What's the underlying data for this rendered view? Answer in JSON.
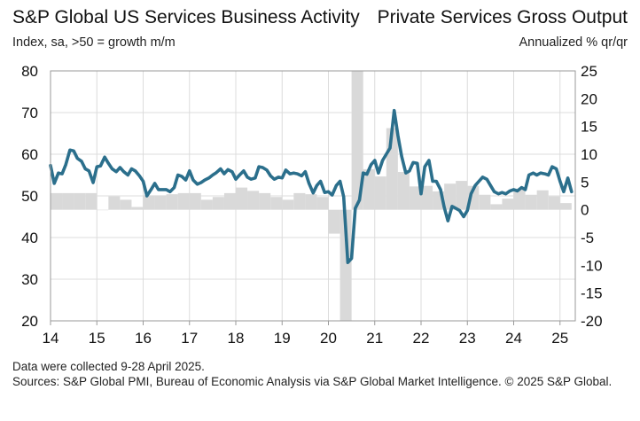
{
  "header": {
    "left_title": "S&P Global US Services Business Activity",
    "right_title": "Private Services Gross Output",
    "left_subtitle": "Index, sa, >50 = growth m/m",
    "right_subtitle": "Annualized % qr/qr"
  },
  "footer": {
    "line1": "Data were collected 9-28 April 2025.",
    "line2": "Sources: S&P Global PMI, Bureau of Economic Analysis via S&P Global Market Intelligence. © 2025 S&P Global."
  },
  "chart_data": {
    "type": "bar+line",
    "x_tick_labels": [
      "14",
      "15",
      "16",
      "17",
      "18",
      "19",
      "20",
      "21",
      "22",
      "23",
      "24",
      "25"
    ],
    "x_range": [
      2014.0,
      2025.33
    ],
    "left_axis": {
      "ylim": [
        20,
        80
      ],
      "ticks": [
        20,
        30,
        40,
        50,
        60,
        70,
        80
      ]
    },
    "right_axis": {
      "ylim": [
        -20,
        25
      ],
      "ticks": [
        -20,
        -15,
        -10,
        -5,
        0,
        5,
        10,
        15,
        20,
        25
      ]
    },
    "bar_color": "#d9d9d9",
    "line_color": "#2b6f8c",
    "grid": true,
    "series": [
      {
        "axis": "right",
        "kind": "bar",
        "quarters": [
          {
            "x": 2014.0,
            "y": 3.0
          },
          {
            "x": 2014.25,
            "y": 3.0
          },
          {
            "x": 2014.5,
            "y": 3.0
          },
          {
            "x": 2014.75,
            "y": 3.0
          },
          {
            "x": 2015.0,
            "y": 0.0
          },
          {
            "x": 2015.25,
            "y": 2.4
          },
          {
            "x": 2015.5,
            "y": 1.8
          },
          {
            "x": 2015.75,
            "y": 0.5
          },
          {
            "x": 2016.0,
            "y": 2.6
          },
          {
            "x": 2016.25,
            "y": 2.6
          },
          {
            "x": 2016.5,
            "y": 2.8
          },
          {
            "x": 2016.75,
            "y": 3.0
          },
          {
            "x": 2017.0,
            "y": 3.0
          },
          {
            "x": 2017.25,
            "y": 1.8
          },
          {
            "x": 2017.5,
            "y": 2.3
          },
          {
            "x": 2017.75,
            "y": 3.0
          },
          {
            "x": 2018.0,
            "y": 4.0
          },
          {
            "x": 2018.25,
            "y": 3.4
          },
          {
            "x": 2018.5,
            "y": 3.0
          },
          {
            "x": 2018.75,
            "y": 2.3
          },
          {
            "x": 2019.0,
            "y": 1.8
          },
          {
            "x": 2019.25,
            "y": 3.0
          },
          {
            "x": 2019.5,
            "y": 2.8
          },
          {
            "x": 2019.75,
            "y": 2.3
          },
          {
            "x": 2020.0,
            "y": -4.3
          },
          {
            "x": 2020.25,
            "y": -20.0
          },
          {
            "x": 2020.5,
            "y": 25.0
          },
          {
            "x": 2020.75,
            "y": 7.3
          },
          {
            "x": 2021.0,
            "y": 6.0
          },
          {
            "x": 2021.25,
            "y": 14.7
          },
          {
            "x": 2021.5,
            "y": 6.8
          },
          {
            "x": 2021.75,
            "y": 4.2
          },
          {
            "x": 2022.0,
            "y": 4.3
          },
          {
            "x": 2022.25,
            "y": 3.3
          },
          {
            "x": 2022.5,
            "y": 4.7
          },
          {
            "x": 2022.75,
            "y": 5.2
          },
          {
            "x": 2023.0,
            "y": 4.3
          },
          {
            "x": 2023.25,
            "y": 2.7
          },
          {
            "x": 2023.5,
            "y": 1.0
          },
          {
            "x": 2023.75,
            "y": 2.0
          },
          {
            "x": 2024.0,
            "y": 3.8
          },
          {
            "x": 2024.25,
            "y": 2.7
          },
          {
            "x": 2024.5,
            "y": 3.5
          },
          {
            "x": 2024.75,
            "y": 2.4
          },
          {
            "x": 2025.0,
            "y": 1.2
          }
        ]
      },
      {
        "axis": "left",
        "kind": "line",
        "points": [
          {
            "x": 2014.0,
            "y": 57.3
          },
          {
            "x": 2014.08,
            "y": 53.0
          },
          {
            "x": 2014.17,
            "y": 55.5
          },
          {
            "x": 2014.25,
            "y": 55.3
          },
          {
            "x": 2014.33,
            "y": 57.5
          },
          {
            "x": 2014.42,
            "y": 61.0
          },
          {
            "x": 2014.5,
            "y": 60.8
          },
          {
            "x": 2014.58,
            "y": 59.0
          },
          {
            "x": 2014.67,
            "y": 58.3
          },
          {
            "x": 2014.75,
            "y": 56.5
          },
          {
            "x": 2014.83,
            "y": 56.0
          },
          {
            "x": 2014.92,
            "y": 53.2
          },
          {
            "x": 2015.0,
            "y": 57.0
          },
          {
            "x": 2015.08,
            "y": 57.2
          },
          {
            "x": 2015.17,
            "y": 59.3
          },
          {
            "x": 2015.25,
            "y": 57.8
          },
          {
            "x": 2015.33,
            "y": 56.5
          },
          {
            "x": 2015.42,
            "y": 55.8
          },
          {
            "x": 2015.5,
            "y": 56.8
          },
          {
            "x": 2015.58,
            "y": 55.8
          },
          {
            "x": 2015.67,
            "y": 55.0
          },
          {
            "x": 2015.75,
            "y": 56.5
          },
          {
            "x": 2015.83,
            "y": 56.0
          },
          {
            "x": 2015.92,
            "y": 54.8
          },
          {
            "x": 2016.0,
            "y": 53.5
          },
          {
            "x": 2016.08,
            "y": 50.0
          },
          {
            "x": 2016.17,
            "y": 51.5
          },
          {
            "x": 2016.25,
            "y": 53.0
          },
          {
            "x": 2016.33,
            "y": 51.5
          },
          {
            "x": 2016.42,
            "y": 51.5
          },
          {
            "x": 2016.5,
            "y": 51.5
          },
          {
            "x": 2016.58,
            "y": 51.0
          },
          {
            "x": 2016.67,
            "y": 52.0
          },
          {
            "x": 2016.75,
            "y": 55.0
          },
          {
            "x": 2016.83,
            "y": 54.7
          },
          {
            "x": 2016.92,
            "y": 53.8
          },
          {
            "x": 2017.0,
            "y": 56.0
          },
          {
            "x": 2017.08,
            "y": 53.8
          },
          {
            "x": 2017.17,
            "y": 52.8
          },
          {
            "x": 2017.25,
            "y": 53.2
          },
          {
            "x": 2017.33,
            "y": 53.8
          },
          {
            "x": 2017.42,
            "y": 54.3
          },
          {
            "x": 2017.5,
            "y": 55.0
          },
          {
            "x": 2017.58,
            "y": 55.6
          },
          {
            "x": 2017.67,
            "y": 56.5
          },
          {
            "x": 2017.75,
            "y": 55.3
          },
          {
            "x": 2017.83,
            "y": 56.3
          },
          {
            "x": 2017.92,
            "y": 55.8
          },
          {
            "x": 2018.0,
            "y": 54.0
          },
          {
            "x": 2018.08,
            "y": 55.0
          },
          {
            "x": 2018.17,
            "y": 56.0
          },
          {
            "x": 2018.25,
            "y": 54.5
          },
          {
            "x": 2018.33,
            "y": 54.0
          },
          {
            "x": 2018.42,
            "y": 54.3
          },
          {
            "x": 2018.5,
            "y": 57.0
          },
          {
            "x": 2018.58,
            "y": 56.8
          },
          {
            "x": 2018.67,
            "y": 56.2
          },
          {
            "x": 2018.75,
            "y": 54.8
          },
          {
            "x": 2018.83,
            "y": 54.0
          },
          {
            "x": 2018.92,
            "y": 54.5
          },
          {
            "x": 2019.0,
            "y": 54.3
          },
          {
            "x": 2019.08,
            "y": 56.2
          },
          {
            "x": 2019.17,
            "y": 55.3
          },
          {
            "x": 2019.25,
            "y": 55.5
          },
          {
            "x": 2019.33,
            "y": 55.3
          },
          {
            "x": 2019.42,
            "y": 54.8
          },
          {
            "x": 2019.5,
            "y": 55.8
          },
          {
            "x": 2019.58,
            "y": 53.0
          },
          {
            "x": 2019.67,
            "y": 50.7
          },
          {
            "x": 2019.75,
            "y": 52.5
          },
          {
            "x": 2019.83,
            "y": 53.5
          },
          {
            "x": 2019.92,
            "y": 50.8
          },
          {
            "x": 2020.0,
            "y": 51.0
          },
          {
            "x": 2020.08,
            "y": 50.2
          },
          {
            "x": 2020.17,
            "y": 52.5
          },
          {
            "x": 2020.25,
            "y": 53.5
          },
          {
            "x": 2020.33,
            "y": 49.8
          },
          {
            "x": 2020.42,
            "y": 34.0
          },
          {
            "x": 2020.5,
            "y": 35.0
          },
          {
            "x": 2020.58,
            "y": 47.0
          },
          {
            "x": 2020.67,
            "y": 49.0
          },
          {
            "x": 2020.75,
            "y": 55.5
          },
          {
            "x": 2020.83,
            "y": 55.2
          },
          {
            "x": 2020.92,
            "y": 57.5
          },
          {
            "x": 2021.0,
            "y": 58.5
          },
          {
            "x": 2021.08,
            "y": 55.5
          },
          {
            "x": 2021.17,
            "y": 58.5
          },
          {
            "x": 2021.25,
            "y": 60.0
          },
          {
            "x": 2021.33,
            "y": 61.5
          },
          {
            "x": 2021.42,
            "y": 70.5
          },
          {
            "x": 2021.5,
            "y": 64.5
          },
          {
            "x": 2021.58,
            "y": 59.5
          },
          {
            "x": 2021.67,
            "y": 55.5
          },
          {
            "x": 2021.75,
            "y": 56.0
          },
          {
            "x": 2021.83,
            "y": 58.0
          },
          {
            "x": 2021.92,
            "y": 57.8
          },
          {
            "x": 2022.0,
            "y": 50.5
          },
          {
            "x": 2022.08,
            "y": 57.0
          },
          {
            "x": 2022.17,
            "y": 58.5
          },
          {
            "x": 2022.25,
            "y": 53.5
          },
          {
            "x": 2022.33,
            "y": 53.5
          },
          {
            "x": 2022.42,
            "y": 51.5
          },
          {
            "x": 2022.5,
            "y": 47.3
          },
          {
            "x": 2022.58,
            "y": 44.0
          },
          {
            "x": 2022.67,
            "y": 47.5
          },
          {
            "x": 2022.75,
            "y": 47.0
          },
          {
            "x": 2022.83,
            "y": 46.5
          },
          {
            "x": 2022.92,
            "y": 45.0
          },
          {
            "x": 2023.0,
            "y": 46.5
          },
          {
            "x": 2023.08,
            "y": 50.5
          },
          {
            "x": 2023.17,
            "y": 52.5
          },
          {
            "x": 2023.25,
            "y": 53.5
          },
          {
            "x": 2023.33,
            "y": 54.5
          },
          {
            "x": 2023.42,
            "y": 54.0
          },
          {
            "x": 2023.5,
            "y": 52.5
          },
          {
            "x": 2023.58,
            "y": 51.0
          },
          {
            "x": 2023.67,
            "y": 50.5
          },
          {
            "x": 2023.75,
            "y": 50.8
          },
          {
            "x": 2023.83,
            "y": 50.5
          },
          {
            "x": 2023.92,
            "y": 51.2
          },
          {
            "x": 2024.0,
            "y": 51.5
          },
          {
            "x": 2024.08,
            "y": 51.2
          },
          {
            "x": 2024.17,
            "y": 52.0
          },
          {
            "x": 2024.25,
            "y": 51.5
          },
          {
            "x": 2024.33,
            "y": 55.0
          },
          {
            "x": 2024.42,
            "y": 55.5
          },
          {
            "x": 2024.5,
            "y": 55.0
          },
          {
            "x": 2024.58,
            "y": 55.5
          },
          {
            "x": 2024.67,
            "y": 55.3
          },
          {
            "x": 2024.75,
            "y": 55.0
          },
          {
            "x": 2024.83,
            "y": 57.0
          },
          {
            "x": 2024.92,
            "y": 56.5
          },
          {
            "x": 2025.0,
            "y": 53.5
          },
          {
            "x": 2025.08,
            "y": 51.0
          },
          {
            "x": 2025.17,
            "y": 54.3
          },
          {
            "x": 2025.25,
            "y": 51.0
          }
        ]
      }
    ]
  }
}
